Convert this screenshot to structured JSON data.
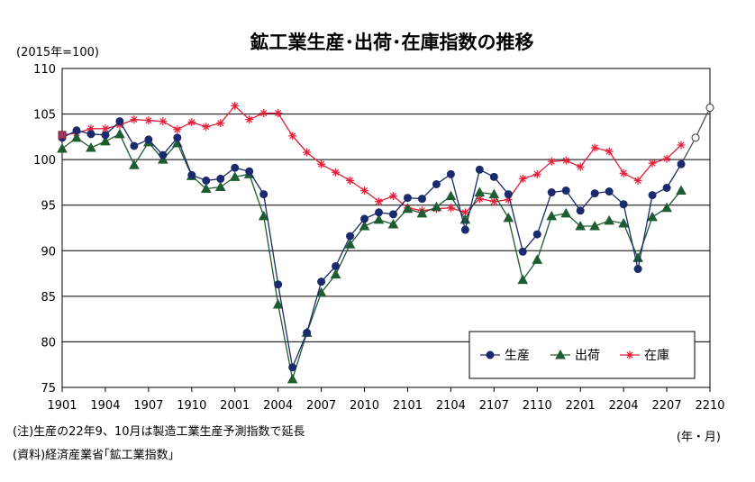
{
  "chart_data": {
    "type": "line",
    "title": "鉱工業生産･出荷･在庫指数の推移",
    "unit_label": "(2015年=100)",
    "xlabel": "(年・月)",
    "ylabel": "",
    "ylim": [
      75,
      110
    ],
    "yticks": [
      75,
      80,
      85,
      90,
      95,
      100,
      105,
      110
    ],
    "x_tick_labels": [
      "1901",
      "1904",
      "1907",
      "1910",
      "2001",
      "2004",
      "2007",
      "2010",
      "2101",
      "2104",
      "2107",
      "2110",
      "2201",
      "2204",
      "2207",
      "2210"
    ],
    "x_range": [
      0,
      45
    ],
    "x_tick_step": 3,
    "grid": true,
    "legend_position": "bottom-right",
    "notes": [
      "(注)生産の22年9、10月は製造工業生産予測指数で延長",
      "(資料)経済産業省｢鉱工業指数｣"
    ],
    "series": [
      {
        "name": "生産",
        "color": "#1b2a6b",
        "marker": "circle",
        "values": [
          102.4,
          103.2,
          102.8,
          102.7,
          104.2,
          101.5,
          102.2,
          100.5,
          102.4,
          98.3,
          97.7,
          97.9,
          99.1,
          98.7,
          96.2,
          86.3,
          77.2,
          81.0,
          86.6,
          88.3,
          91.6,
          93.5,
          94.2,
          94.0,
          95.8,
          95.7,
          97.3,
          98.4,
          92.3,
          98.9,
          98.1,
          96.2,
          89.9,
          91.8,
          96.4,
          96.6,
          94.4,
          96.3,
          96.5,
          95.1,
          88.0,
          96.1,
          96.9,
          99.5,
          null,
          null
        ],
        "forecast": [
          null,
          null,
          null,
          null,
          null,
          null,
          null,
          null,
          null,
          null,
          null,
          null,
          null,
          null,
          null,
          null,
          null,
          null,
          null,
          null,
          null,
          null,
          null,
          null,
          null,
          null,
          null,
          null,
          null,
          null,
          null,
          null,
          null,
          null,
          null,
          null,
          null,
          null,
          null,
          null,
          null,
          null,
          null,
          99.5,
          102.4,
          105.7
        ]
      },
      {
        "name": "出荷",
        "color": "#1f5c32",
        "marker": "triangle",
        "values": [
          101.2,
          102.4,
          101.3,
          102.0,
          102.8,
          99.4,
          101.9,
          100.0,
          101.8,
          98.2,
          96.8,
          97.0,
          98.1,
          98.4,
          93.8,
          84.1,
          75.9,
          81.0,
          85.4,
          87.4,
          90.7,
          92.7,
          93.4,
          92.9,
          94.6,
          94.1,
          94.8,
          96.0,
          93.4,
          96.4,
          96.2,
          93.6,
          86.8,
          89.0,
          93.8,
          94.1,
          92.7,
          92.7,
          93.3,
          93.0,
          89.2,
          93.7,
          94.7,
          96.6,
          null,
          null
        ]
      },
      {
        "name": "在庫",
        "color": "#e0203a",
        "marker": "asterisk",
        "values": [
          102.7,
          102.9,
          103.4,
          103.4,
          103.8,
          104.4,
          104.3,
          104.2,
          103.3,
          104.1,
          103.6,
          104.0,
          105.9,
          104.4,
          105.1,
          105.1,
          102.6,
          100.8,
          99.5,
          98.6,
          97.7,
          96.6,
          95.4,
          96.0,
          94.7,
          94.4,
          94.6,
          94.7,
          94.2,
          95.7,
          95.4,
          95.6,
          97.9,
          98.4,
          99.8,
          99.9,
          99.2,
          101.3,
          100.9,
          98.5,
          97.7,
          99.6,
          100.1,
          101.6,
          null,
          null
        ]
      }
    ]
  }
}
